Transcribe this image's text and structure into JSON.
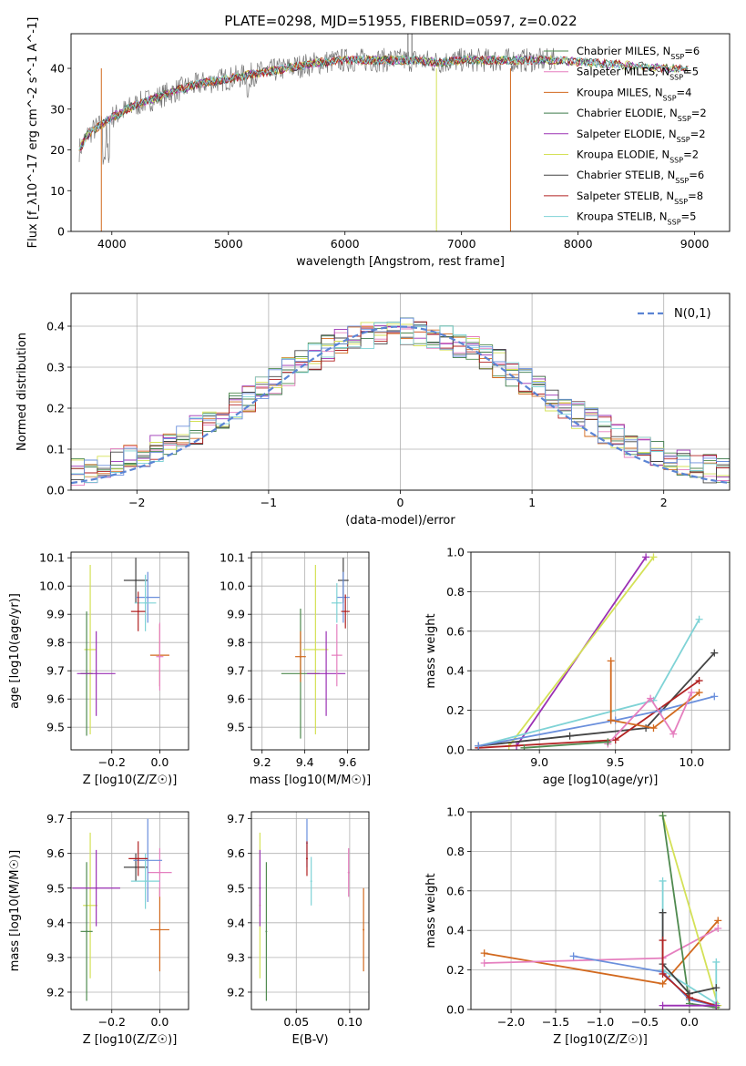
{
  "title": "PLATE=0298, MJD=51955, FIBERID=0597, z=0.022",
  "colors": [
    "#4f8a4f",
    "#e57fbf",
    "#d2691e",
    "#3c7a4a",
    "#9b30b4",
    "#d4e157",
    "#444444",
    "#b22222",
    "#7fd3d6"
  ],
  "chart_data": [
    {
      "id": "spectrum",
      "type": "line",
      "xlabel": "wavelength [Angstrom, rest frame]",
      "ylabel": "Flux [f_λ10^-17 erg cm^-2 s^-1 A^-1]",
      "xlim": [
        3650,
        9300
      ],
      "ylim": [
        0,
        48.5
      ],
      "xticks": [
        4000,
        5000,
        6000,
        7000,
        8000,
        9000
      ],
      "yticks": [
        0,
        10,
        20,
        30,
        40
      ],
      "grid": false,
      "legend_position": "right",
      "series": [
        {
          "name": "Chabrier MILES, N_SSP=6",
          "color": "#4f8a4f"
        },
        {
          "name": "Salpeter MILES, N_SSP=5",
          "color": "#e57fbf"
        },
        {
          "name": "Kroupa MILES, N_SSP=4",
          "color": "#d2691e"
        },
        {
          "name": "Chabrier ELODIE, N_SSP=2",
          "color": "#3c7a4a"
        },
        {
          "name": "Salpeter ELODIE, N_SSP=2",
          "color": "#9b30b4"
        },
        {
          "name": "Kroupa ELODIE, N_SSP=2",
          "color": "#d4e157"
        },
        {
          "name": "Chabrier STELIB, N_SSP=6",
          "color": "#444444"
        },
        {
          "name": "Salpeter STELIB, N_SSP=8",
          "color": "#b22222"
        },
        {
          "name": "Kroupa STELIB, N_SSP=5",
          "color": "#7fd3d6"
        }
      ],
      "continuum": {
        "x": [
          3720,
          3800,
          3900,
          4000,
          4200,
          4400,
          4600,
          4800,
          5000,
          5200,
          5400,
          5600,
          5800,
          6000,
          6200,
          6400,
          6600,
          6800,
          7000,
          7200,
          7400,
          7600,
          7800
        ],
        "y": [
          20,
          24,
          26,
          28,
          31,
          33,
          35,
          36.5,
          37.5,
          38.5,
          39.5,
          40.5,
          41.5,
          42,
          42,
          42,
          42,
          41.5,
          42,
          42,
          42,
          42,
          42
        ]
      }
    },
    {
      "id": "residuals",
      "type": "line",
      "xlabel": "(data-model)/error",
      "ylabel": "Normed distribution",
      "xlim": [
        -2.5,
        2.5
      ],
      "ylim": [
        0,
        0.48
      ],
      "xticks": [
        -2,
        -1,
        0,
        1,
        2
      ],
      "yticks": [
        0.0,
        0.1,
        0.2,
        0.3,
        0.4
      ],
      "grid": true,
      "legend": "N(0,1)",
      "legend_position": "top-right"
    },
    {
      "id": "age-Z",
      "type": "scatter",
      "xlabel": "Z [log10(Z/Z☉)]",
      "ylabel": "age [log10(age/yr)]",
      "xlim": [
        -0.37,
        0.12
      ],
      "ylim": [
        9.42,
        10.12
      ],
      "xticks": [
        -0.2,
        0.0
      ],
      "yticks": [
        9.5,
        9.6,
        9.7,
        9.8,
        9.9,
        10.0,
        10.1
      ],
      "grid": true,
      "points": [
        {
          "x": -0.29,
          "y": 9.775,
          "xerr": 0.025,
          "yerr": 0.3,
          "color": "#d4e157"
        },
        {
          "x": -0.305,
          "y": 9.69,
          "xerr": 0.025,
          "yerr": 0.22,
          "color": "#4f8a4f"
        },
        {
          "x": -0.265,
          "y": 9.69,
          "xerr": 0.08,
          "yerr": 0.15,
          "color": "#9b30b4"
        },
        {
          "x": 0.0,
          "y": 9.755,
          "xerr": 0.04,
          "yerr": 0.11,
          "color": "#d2691e"
        },
        {
          "x": 0.0,
          "y": 9.75,
          "xerr": 0.015,
          "yerr": 0.12,
          "color": "#e57fbf"
        },
        {
          "x": -0.1,
          "y": 10.02,
          "xerr": 0.05,
          "yerr": 0.08,
          "color": "#444444"
        },
        {
          "x": -0.05,
          "y": 9.96,
          "xerr": 0.05,
          "yerr": 0.09,
          "color": "#6a8fdc"
        },
        {
          "x": -0.06,
          "y": 9.94,
          "xerr": 0.045,
          "yerr": 0.1,
          "color": "#7fd3d6"
        },
        {
          "x": -0.09,
          "y": 9.91,
          "xerr": 0.03,
          "yerr": 0.07,
          "color": "#b22222"
        }
      ]
    },
    {
      "id": "age-mass",
      "type": "scatter",
      "xlabel": "mass [log10(M/M☉)]",
      "ylabel": "",
      "xlim": [
        9.15,
        9.7
      ],
      "ylim": [
        9.42,
        10.12
      ],
      "xticks": [
        9.2,
        9.4,
        9.6
      ],
      "yticks": [
        9.5,
        9.6,
        9.7,
        9.8,
        9.9,
        10.0,
        10.1
      ],
      "grid": true,
      "points": [
        {
          "x": 9.45,
          "y": 9.775,
          "xerr": 0.06,
          "yerr": 0.3,
          "color": "#d4e157"
        },
        {
          "x": 9.38,
          "y": 9.69,
          "xerr": 0.09,
          "yerr": 0.23,
          "color": "#4f8a4f"
        },
        {
          "x": 9.5,
          "y": 9.69,
          "xerr": 0.09,
          "yerr": 0.15,
          "color": "#9b30b4"
        },
        {
          "x": 9.38,
          "y": 9.75,
          "xerr": 0.025,
          "yerr": 0.09,
          "color": "#d2691e"
        },
        {
          "x": 9.55,
          "y": 9.755,
          "xerr": 0.025,
          "yerr": 0.11,
          "color": "#e57fbf"
        },
        {
          "x": 9.58,
          "y": 10.02,
          "xerr": 0.025,
          "yerr": 0.08,
          "color": "#444444"
        },
        {
          "x": 9.58,
          "y": 9.96,
          "xerr": 0.03,
          "yerr": 0.09,
          "color": "#6a8fdc"
        },
        {
          "x": 9.55,
          "y": 9.94,
          "xerr": 0.025,
          "yerr": 0.07,
          "color": "#7fd3d6"
        },
        {
          "x": 9.59,
          "y": 9.91,
          "xerr": 0.02,
          "yerr": 0.06,
          "color": "#b22222"
        }
      ]
    },
    {
      "id": "weight-age",
      "type": "line",
      "xlabel": "age [log10(age/yr)]",
      "ylabel": "mass weight",
      "xlim": [
        8.55,
        10.25
      ],
      "ylim": [
        0,
        1.0
      ],
      "xticks": [
        9.0,
        9.5,
        10.0
      ],
      "yticks": [
        0.0,
        0.2,
        0.4,
        0.6,
        0.8,
        1.0
      ],
      "grid": true,
      "series": [
        {
          "color": "#9b30b4",
          "x": [
            8.85,
            9.7
          ],
          "y": [
            0.02,
            0.975
          ]
        },
        {
          "color": "#d4e157",
          "x": [
            8.8,
            9.75
          ],
          "y": [
            0.02,
            0.975
          ]
        },
        {
          "color": "#7fd3d6",
          "x": [
            8.6,
            9.75,
            10.05
          ],
          "y": [
            0.02,
            0.25,
            0.66
          ]
        },
        {
          "color": "#444444",
          "x": [
            8.6,
            9.2,
            9.7,
            10.15
          ],
          "y": [
            0.02,
            0.07,
            0.11,
            0.49
          ]
        },
        {
          "color": "#b22222",
          "x": [
            8.6,
            9.5,
            10.05
          ],
          "y": [
            0.01,
            0.05,
            0.35
          ]
        },
        {
          "color": "#6a8fdc",
          "x": [
            8.6,
            9.5,
            9.8,
            10.15
          ],
          "y": [
            0.02,
            0.15,
            0.2,
            0.27
          ]
        },
        {
          "color": "#d2691e",
          "x": [
            9.47,
            9.47,
            9.75,
            10.05
          ],
          "y": [
            0.45,
            0.15,
            0.11,
            0.29
          ]
        },
        {
          "color": "#e57fbf",
          "x": [
            9.45,
            9.73,
            9.88,
            10.0
          ],
          "y": [
            0.03,
            0.26,
            0.08,
            0.29
          ]
        },
        {
          "color": "#4f8a4f",
          "x": [
            8.9,
            9.45
          ],
          "y": [
            0.01,
            0.04
          ]
        }
      ]
    },
    {
      "id": "mass-Z",
      "type": "scatter",
      "xlabel": "Z [log10(Z/Z☉)]",
      "ylabel": "mass [log10(M/M☉)]",
      "xlim": [
        -0.37,
        0.12
      ],
      "ylim": [
        9.15,
        9.72
      ],
      "xticks": [
        -0.2,
        0.0
      ],
      "yticks": [
        9.2,
        9.3,
        9.4,
        9.5,
        9.6,
        9.7
      ],
      "grid": true,
      "points": [
        {
          "x": -0.29,
          "y": 9.45,
          "xerr": 0.03,
          "yerr": 0.21,
          "color": "#d4e157"
        },
        {
          "x": -0.305,
          "y": 9.375,
          "xerr": 0.025,
          "yerr": 0.2,
          "color": "#4f8a4f"
        },
        {
          "x": -0.265,
          "y": 9.5,
          "xerr": 0.1,
          "yerr": 0.11,
          "color": "#9b30b4"
        },
        {
          "x": 0.0,
          "y": 9.38,
          "xerr": 0.04,
          "yerr": 0.12,
          "color": "#d2691e"
        },
        {
          "x": 0.0,
          "y": 9.545,
          "xerr": 0.05,
          "yerr": 0.07,
          "color": "#e57fbf"
        },
        {
          "x": -0.1,
          "y": 9.56,
          "xerr": 0.05,
          "yerr": 0.04,
          "color": "#444444"
        },
        {
          "x": -0.05,
          "y": 9.58,
          "xerr": 0.06,
          "yerr": 0.12,
          "color": "#6a8fdc"
        },
        {
          "x": -0.06,
          "y": 9.52,
          "xerr": 0.06,
          "yerr": 0.08,
          "color": "#7fd3d6"
        },
        {
          "x": -0.09,
          "y": 9.585,
          "xerr": 0.04,
          "yerr": 0.05,
          "color": "#b22222"
        }
      ]
    },
    {
      "id": "mass-EBV",
      "type": "scatter",
      "xlabel": "E(B-V)",
      "ylabel": "",
      "xlim": [
        0.008,
        0.118
      ],
      "ylim": [
        9.15,
        9.72
      ],
      "xticks": [
        0.05,
        0.1
      ],
      "yticks": [
        9.2,
        9.3,
        9.4,
        9.5,
        9.6,
        9.7
      ],
      "grid": true,
      "points": [
        {
          "x": 0.016,
          "y": 9.45,
          "yerr": 0.21,
          "color": "#d4e157"
        },
        {
          "x": 0.022,
          "y": 9.375,
          "yerr": 0.2,
          "color": "#4f8a4f"
        },
        {
          "x": 0.016,
          "y": 9.5,
          "yerr": 0.11,
          "color": "#9b30b4"
        },
        {
          "x": 0.113,
          "y": 9.38,
          "yerr": 0.12,
          "color": "#d2691e"
        },
        {
          "x": 0.099,
          "y": 9.545,
          "yerr": 0.07,
          "color": "#e57fbf"
        },
        {
          "x": 0.06,
          "y": 9.63,
          "yerr": 0.07,
          "color": "#6a8fdc"
        },
        {
          "x": 0.064,
          "y": 9.52,
          "yerr": 0.07,
          "color": "#7fd3d6"
        },
        {
          "x": 0.06,
          "y": 9.585,
          "yerr": 0.05,
          "color": "#b22222"
        }
      ]
    },
    {
      "id": "weight-Z",
      "type": "line",
      "xlabel": "Z [log10(Z/Z☉)]",
      "ylabel": "mass weight",
      "xlim": [
        -2.45,
        0.45
      ],
      "ylim": [
        0,
        1.0
      ],
      "xticks": [
        -2.0,
        -1.5,
        -1.0,
        -0.5,
        0.0
      ],
      "yticks": [
        0.0,
        0.2,
        0.4,
        0.6,
        0.8,
        1.0
      ],
      "grid": true,
      "series": [
        {
          "color": "#d2691e",
          "x": [
            -2.3,
            -0.3,
            0.32
          ],
          "y": [
            0.285,
            0.13,
            0.45
          ]
        },
        {
          "color": "#e57fbf",
          "x": [
            -2.3,
            -0.3,
            0.32
          ],
          "y": [
            0.235,
            0.26,
            0.41
          ]
        },
        {
          "color": "#6a8fdc",
          "x": [
            -1.3,
            -0.3,
            0.0,
            0.3
          ],
          "y": [
            0.27,
            0.19,
            0.05,
            0.02
          ]
        },
        {
          "color": "#d4e157",
          "x": [
            -0.3,
            0.32
          ],
          "y": [
            0.98,
            0.02
          ]
        },
        {
          "color": "#4f8a4f",
          "x": [
            -0.3,
            0.0,
            0.3
          ],
          "y": [
            0.98,
            0.03,
            0.01
          ]
        },
        {
          "color": "#7fd3d6",
          "x": [
            -0.3,
            -0.3,
            0.3,
            0.3
          ],
          "y": [
            0.65,
            0.2,
            0.03,
            0.24
          ]
        },
        {
          "color": "#444444",
          "x": [
            -0.3,
            -0.3,
            0.0,
            0.3
          ],
          "y": [
            0.49,
            0.23,
            0.08,
            0.11
          ]
        },
        {
          "color": "#b22222",
          "x": [
            -0.3,
            -0.3,
            0.0,
            0.3
          ],
          "y": [
            0.35,
            0.18,
            0.06,
            0.02
          ]
        },
        {
          "color": "#9b30b4",
          "x": [
            -0.3,
            0.3
          ],
          "y": [
            0.02,
            0.02
          ]
        }
      ]
    }
  ]
}
